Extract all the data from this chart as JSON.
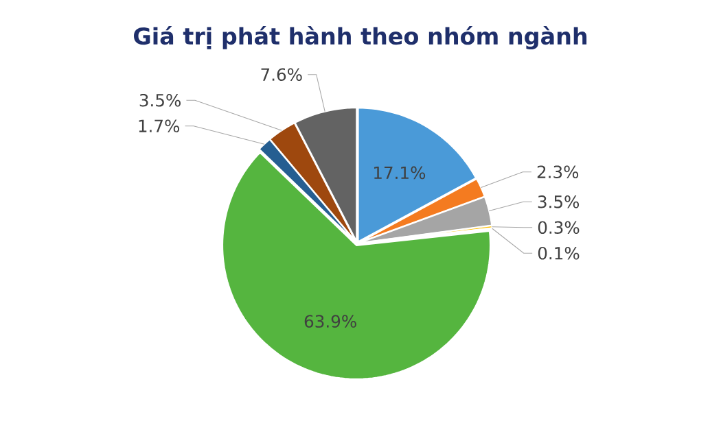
{
  "chart_data": {
    "type": "pie",
    "title": "Giá trị phát hành theo nhóm ngành",
    "categories": [
      null,
      null,
      null,
      null,
      null,
      null,
      null,
      null,
      null
    ],
    "values": [
      17.1,
      2.3,
      3.5,
      0.3,
      0.1,
      63.9,
      1.7,
      3.5,
      7.6
    ],
    "colors": [
      "#4a9ad8",
      "#f47b20",
      "#a5a5a5",
      "#ffc000",
      "#4472c4",
      "#55b53f",
      "#255e91",
      "#9e480e",
      "#636363"
    ],
    "value_labels": [
      "17.1%",
      "2.3%",
      "3.5%",
      "0.3%",
      "0.1%",
      "63.9%",
      "1.7%",
      "3.5%",
      "7.6%"
    ]
  }
}
